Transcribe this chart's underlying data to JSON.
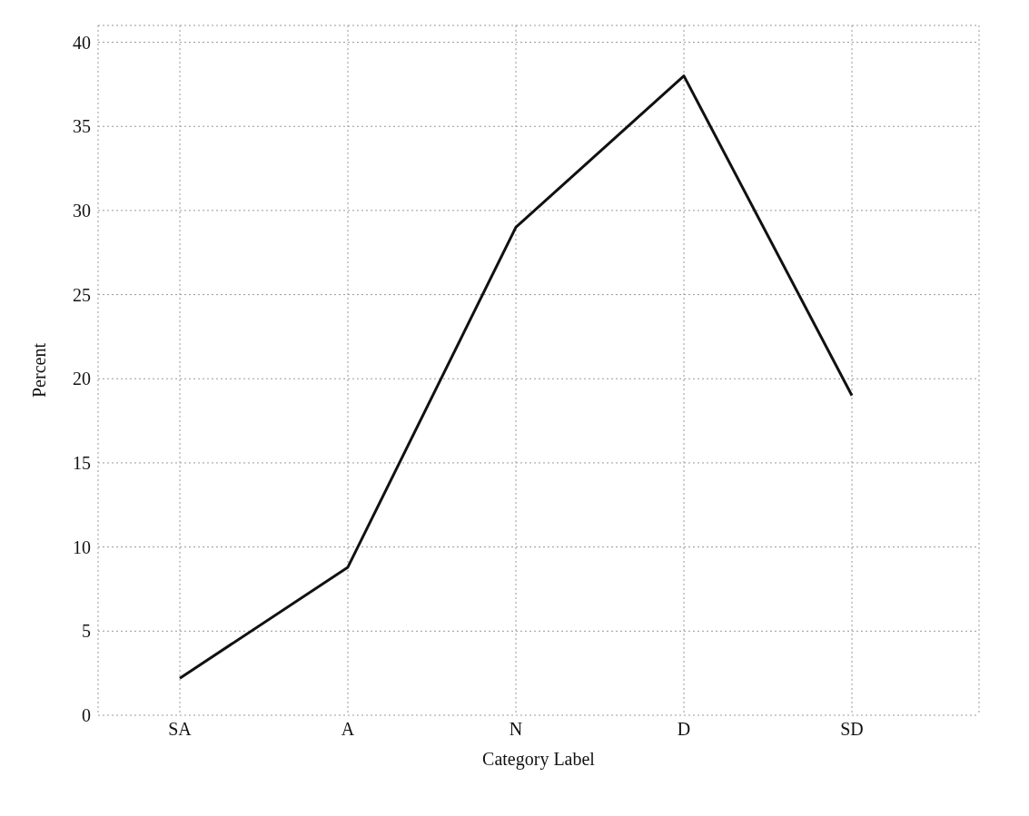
{
  "chart_data": {
    "type": "line",
    "xlabel": "Category Label",
    "ylabel": "Percent",
    "categories": [
      "SA",
      "A",
      "N",
      "D",
      "SD"
    ],
    "series": [
      {
        "color": "#111111",
        "values": [
          2.2,
          8.8,
          29,
          38,
          19
        ]
      }
    ],
    "ylim": [
      0,
      41
    ],
    "yticks": [
      0,
      5,
      10,
      15,
      20,
      25,
      30,
      35,
      40
    ],
    "grid": true,
    "marker": "none",
    "line_style": "solid"
  }
}
